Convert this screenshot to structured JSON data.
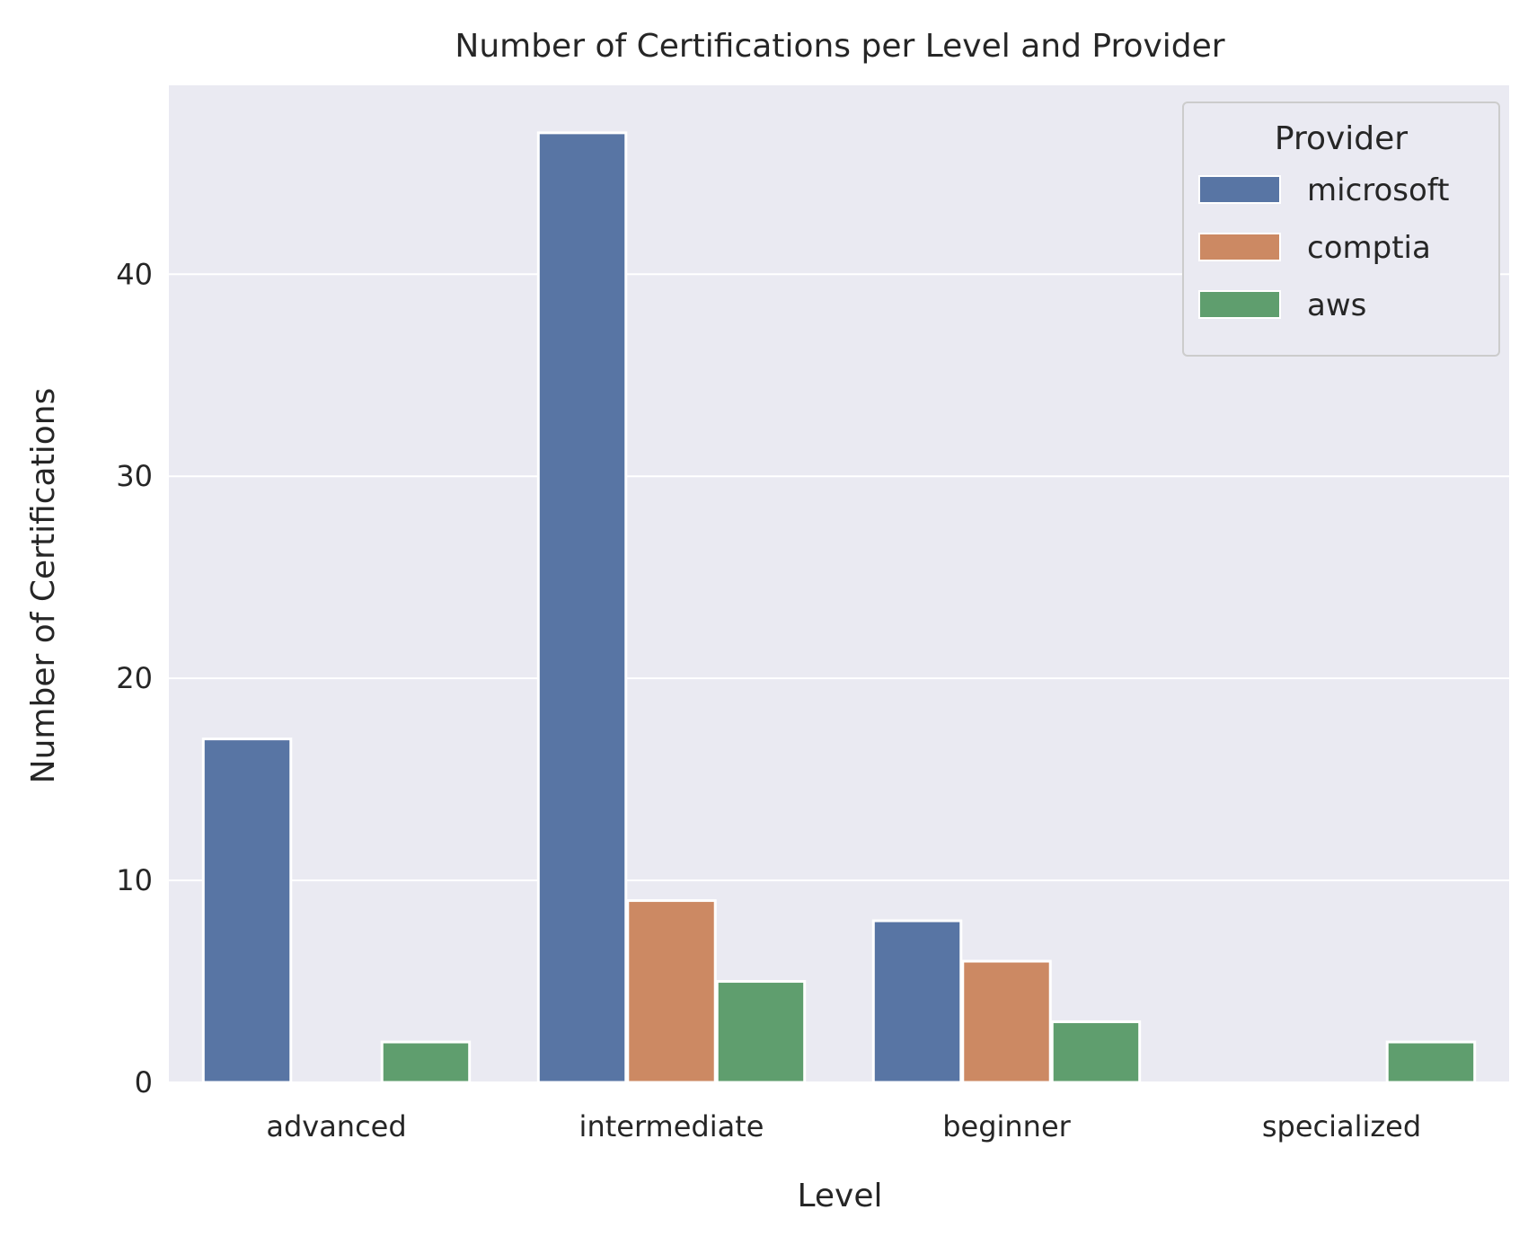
{
  "chart_data": {
    "type": "bar",
    "title": "Number of Certifications per Level and Provider",
    "xlabel": "Level",
    "ylabel": "Number of Certifications",
    "categories": [
      "advanced",
      "intermediate",
      "beginner",
      "specialized"
    ],
    "series": [
      {
        "name": "microsoft",
        "color": "#5875a4",
        "values": [
          17,
          47,
          8,
          0
        ]
      },
      {
        "name": "comptia",
        "color": "#cc8963",
        "values": [
          0,
          9,
          6,
          0
        ]
      },
      {
        "name": "aws",
        "color": "#5f9e6e",
        "values": [
          2,
          5,
          3,
          2
        ]
      }
    ],
    "ylim": [
      0,
      49.35
    ],
    "yticks": [
      0,
      10,
      20,
      30,
      40
    ],
    "grid": true,
    "legend": {
      "title": "Provider",
      "placement": "top-right"
    },
    "style": {
      "plot_background": "#eaeaf2",
      "grid_color": "#ffffff"
    }
  }
}
